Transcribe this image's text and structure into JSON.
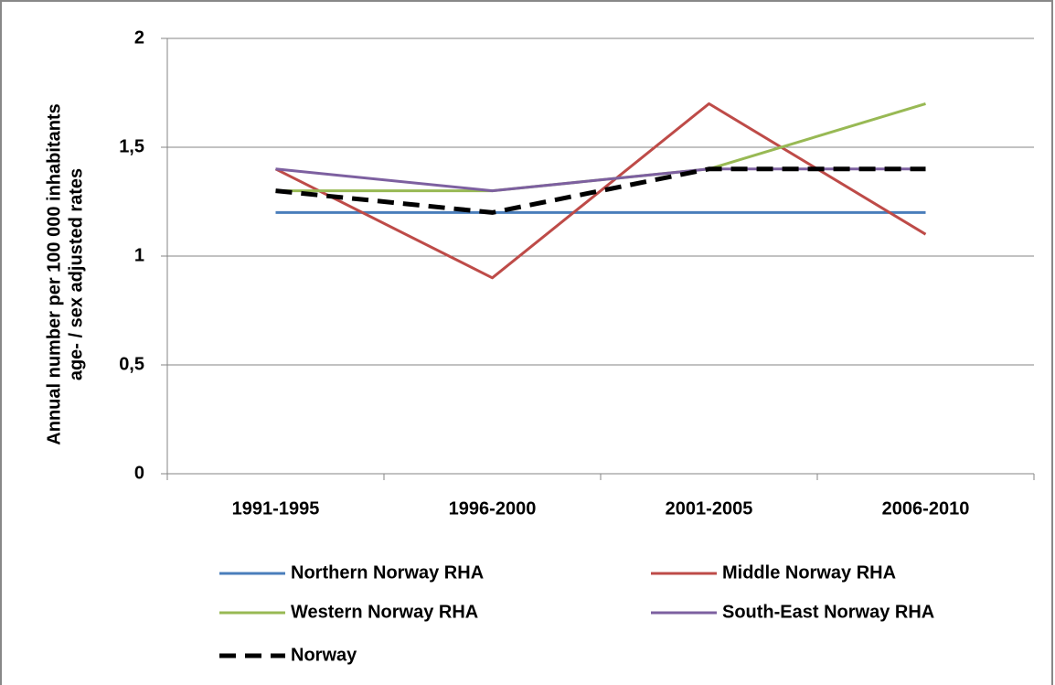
{
  "chart_data": {
    "type": "line",
    "ylabel": [
      "Annual number per 100 000 inhabitants",
      "age- / sex adjusted rates"
    ],
    "categories": [
      "1991-1995",
      "1996-2000",
      "2001-2005",
      "2006-2010"
    ],
    "series": [
      {
        "name": "Northern Norway RHA",
        "color": "#4a7ebb",
        "linestyle": "solid",
        "values": [
          1.2,
          1.2,
          1.2,
          1.2
        ]
      },
      {
        "name": "Middle Norway RHA",
        "color": "#be4b48",
        "linestyle": "solid",
        "values": [
          1.4,
          0.9,
          1.7,
          1.1
        ]
      },
      {
        "name": "Western Norway RHA",
        "color": "#98b954",
        "linestyle": "solid",
        "values": [
          1.3,
          1.3,
          1.4,
          1.7
        ]
      },
      {
        "name": "South-East Norway RHA",
        "color": "#7d60a0",
        "linestyle": "solid",
        "values": [
          1.4,
          1.3,
          1.4,
          1.4
        ]
      },
      {
        "name": "Norway",
        "color": "#000000",
        "linestyle": "dashed",
        "values": [
          1.3,
          1.2,
          1.4,
          1.4
        ]
      }
    ],
    "ylim": [
      0,
      2
    ],
    "yticks": [
      0,
      {
        "value": 0.5,
        "label": "0,5"
      },
      1,
      {
        "value": 1.5,
        "label": "1,5"
      },
      2
    ],
    "grid": true
  }
}
